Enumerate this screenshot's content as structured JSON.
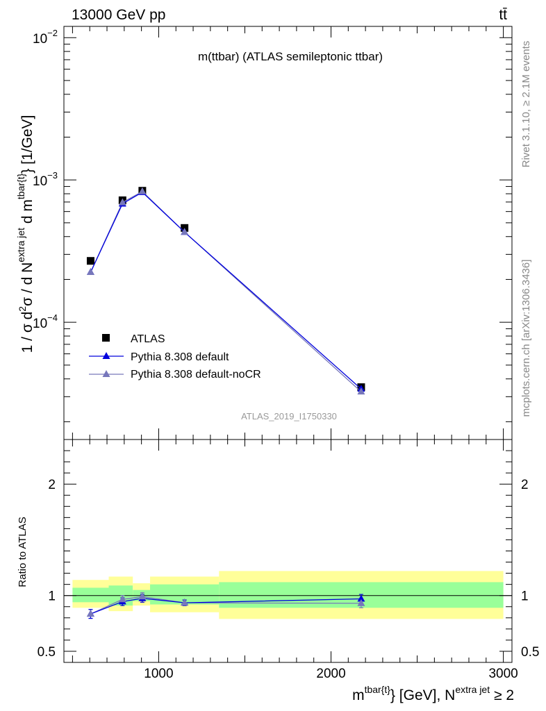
{
  "header": {
    "left": "13000 GeV pp",
    "right": "tt̄"
  },
  "side_labels": {
    "rivet": "Rivet 3.1.10, ≥ 2.1M events",
    "mcplots": "mcplots.cern.ch [arXiv:1306.3436]"
  },
  "colors": {
    "atlas": "#000000",
    "default": "#0000dd",
    "nocr": "#7777bb",
    "band_inner": "#99ff99",
    "band_outer": "#ffff99",
    "watermark": "#999999"
  },
  "chart_data": [
    {
      "type": "line",
      "title": "m(ttbar) (ATLAS semileptonic ttbar)",
      "watermark": "ATLAS_2019_I1750330",
      "ylabel": "1 / σ d²σ / d N^{extra jet} d m^{tbar{t}} [1/GeV]",
      "ylabel_parts": {
        "main": "1 / σ d",
        "sup1": "2",
        "mid1": "σ / d N",
        "sup2": "extra jet",
        "mid2": " d m",
        "sup3": "tbar{t}",
        "end": "} [1/GeV]"
      },
      "yscale": "log",
      "xlim": [
        450,
        3050
      ],
      "ylim": [
        1.5e-05,
        0.012
      ],
      "y_ticks": [
        {
          "value": 0.01,
          "base": "10",
          "exp": "−2"
        },
        {
          "value": 0.001,
          "base": "10",
          "exp": "−3"
        },
        {
          "value": 0.0001,
          "base": "10",
          "exp": "−4"
        }
      ],
      "legend": "left",
      "legend_entries": [
        "ATLAS",
        "Pythia 8.308 default",
        "Pythia 8.308 default-noCR"
      ],
      "x": [
        605,
        790,
        905,
        1150,
        2175
      ],
      "series": [
        {
          "name": "ATLAS",
          "values": [
            0.00027,
            0.00072,
            0.00084,
            0.00046,
            3.5e-05
          ]
        },
        {
          "name": "Pythia 8.308 default",
          "values": [
            0.000225,
            0.00068,
            0.00082,
            0.00043,
            3.4e-05
          ]
        },
        {
          "name": "Pythia 8.308 default-noCR",
          "values": [
            0.000225,
            0.000695,
            0.00083,
            0.00043,
            3.25e-05
          ]
        }
      ]
    },
    {
      "type": "line",
      "ylabel": "Ratio to ATLAS",
      "xlabel_parts": {
        "main": "m",
        "sup1": "tbar{t}",
        "mid": "} [GeV], N",
        "sup2": "extra jet",
        "end": " ≥ 2"
      },
      "xlim": [
        450,
        3050
      ],
      "ylim": [
        0.4,
        2.4
      ],
      "x_ticks": [
        1000,
        2000,
        3000
      ],
      "y_ticks": [
        0.5,
        1,
        2
      ],
      "bins": [
        {
          "lo": 500,
          "hi": 710,
          "inner": [
            0.94,
            1.07
          ],
          "outer": [
            0.89,
            1.14
          ]
        },
        {
          "lo": 710,
          "hi": 850,
          "inner": [
            0.91,
            1.09
          ],
          "outer": [
            0.86,
            1.17
          ]
        },
        {
          "lo": 850,
          "hi": 950,
          "inner": [
            0.95,
            1.05
          ],
          "outer": [
            0.91,
            1.11
          ]
        },
        {
          "lo": 950,
          "hi": 1350,
          "inner": [
            0.92,
            1.1
          ],
          "outer": [
            0.85,
            1.17
          ]
        },
        {
          "lo": 1350,
          "hi": 3000,
          "inner": [
            0.89,
            1.12
          ],
          "outer": [
            0.79,
            1.22
          ]
        }
      ],
      "x": [
        605,
        790,
        905,
        1150,
        2175
      ],
      "series": [
        {
          "name": "Pythia 8.308 default",
          "values": [
            0.835,
            0.945,
            0.975,
            0.935,
            0.97
          ],
          "errors": [
            0.04,
            0.035,
            0.035,
            0.025,
            0.04
          ]
        },
        {
          "name": "Pythia 8.308 default-noCR",
          "values": [
            0.835,
            0.965,
            0.99,
            0.935,
            0.93
          ],
          "errors": [
            0.04,
            0.035,
            0.035,
            0.025,
            0.04
          ]
        }
      ]
    }
  ]
}
